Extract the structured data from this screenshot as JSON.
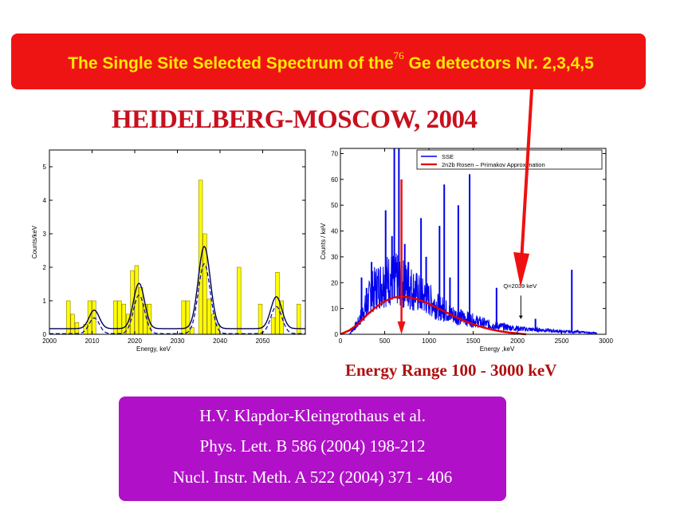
{
  "banner": {
    "text_before": "The Single Site Selected Spectrum of the",
    "superscript": "76",
    "text_after": " Ge detectors Nr. 2,3,4,5"
  },
  "subtitle": "HEIDELBERG-MOSCOW, 2004",
  "energy_range_label": "Energy Range 100 - 3000 keV",
  "references": {
    "authors": "H.V. Klapdor-Kleingrothaus et al.",
    "citation_1": "Phys. Lett. B 586 (2004) 198-212",
    "citation_2": "Nucl. Instr. Meth. A 522 (2004) 371 - 406"
  },
  "colors": {
    "banner_bg": "#ef1414",
    "banner_text": "#ffea00",
    "title_red": "#c8101e",
    "ref_box_bg": "#b010c8",
    "bar_fill": "#ffff00",
    "sse_line": "#0000ee",
    "fit_line": "#dd0000"
  },
  "chart_data": [
    {
      "type": "bar",
      "title": "",
      "xlabel": "Energy, keV",
      "ylabel": "Counts/keV",
      "xlim": [
        2000,
        2060
      ],
      "ylim": [
        0,
        5.5
      ],
      "xticks": [
        2000,
        2010,
        2020,
        2030,
        2040,
        2050
      ],
      "yticks": [
        0,
        1,
        2,
        3,
        4,
        5
      ],
      "bin_width": 1,
      "bins": [
        {
          "x": 2004,
          "y": 1.0
        },
        {
          "x": 2005,
          "y": 0.6
        },
        {
          "x": 2006,
          "y": 0.35
        },
        {
          "x": 2008,
          "y": 0.3
        },
        {
          "x": 2009,
          "y": 1.0
        },
        {
          "x": 2010,
          "y": 1.0
        },
        {
          "x": 2015,
          "y": 1.0
        },
        {
          "x": 2016,
          "y": 1.0
        },
        {
          "x": 2017,
          "y": 0.9
        },
        {
          "x": 2018,
          "y": 0.6
        },
        {
          "x": 2019,
          "y": 1.9
        },
        {
          "x": 2020,
          "y": 2.05
        },
        {
          "x": 2021,
          "y": 1.4
        },
        {
          "x": 2022,
          "y": 0.9
        },
        {
          "x": 2023,
          "y": 0.9
        },
        {
          "x": 2031,
          "y": 1.0
        },
        {
          "x": 2032,
          "y": 1.0
        },
        {
          "x": 2033,
          "y": 0.2
        },
        {
          "x": 2035,
          "y": 4.6
        },
        {
          "x": 2036,
          "y": 3.0
        },
        {
          "x": 2037,
          "y": 1.05
        },
        {
          "x": 2038,
          "y": 0.6
        },
        {
          "x": 2039,
          "y": 0.3
        },
        {
          "x": 2044,
          "y": 2.0
        },
        {
          "x": 2049,
          "y": 0.9
        },
        {
          "x": 2052,
          "y": 0.5
        },
        {
          "x": 2053,
          "y": 1.85
        },
        {
          "x": 2054,
          "y": 1.0
        },
        {
          "x": 2058,
          "y": 0.9
        }
      ],
      "fit_peaks": [
        {
          "center": 2010.5,
          "height": 0.55,
          "sigma": 1.2
        },
        {
          "center": 2021.0,
          "height": 1.35,
          "sigma": 1.3
        },
        {
          "center": 2036.3,
          "height": 2.45,
          "sigma": 1.4
        },
        {
          "center": 2053.2,
          "height": 0.95,
          "sigma": 1.3
        }
      ],
      "fit_baseline": 0.17
    },
    {
      "type": "line",
      "title": "",
      "xlabel": "Energy ,keV",
      "ylabel": "Counts / keV",
      "xlim": [
        0,
        3000
      ],
      "ylim": [
        0,
        72
      ],
      "xticks": [
        0,
        500,
        1000,
        1500,
        2000,
        2500,
        3000
      ],
      "yticks": [
        0,
        10,
        20,
        30,
        40,
        50,
        60,
        70
      ],
      "legend_position": "top-right",
      "series": [
        {
          "name": "SSE",
          "color": "#0000ee"
        },
        {
          "name": "2n2b Rosen – Primakov Approximation",
          "color": "#dd0000"
        }
      ],
      "sse_envelope": [
        [
          100,
          0
        ],
        [
          200,
          5
        ],
        [
          260,
          10
        ],
        [
          300,
          13
        ],
        [
          350,
          18
        ],
        [
          400,
          20
        ],
        [
          500,
          23
        ],
        [
          600,
          24
        ],
        [
          700,
          22
        ],
        [
          800,
          20
        ],
        [
          900,
          17
        ],
        [
          1000,
          15
        ],
        [
          1100,
          12
        ],
        [
          1200,
          10
        ],
        [
          1300,
          8
        ],
        [
          1400,
          7
        ],
        [
          1500,
          6
        ],
        [
          1600,
          5
        ],
        [
          1700,
          4
        ],
        [
          1800,
          3.5
        ],
        [
          1900,
          3
        ],
        [
          2000,
          2.5
        ],
        [
          2100,
          2.2
        ],
        [
          2300,
          1.8
        ],
        [
          2500,
          1.2
        ],
        [
          2700,
          1.0
        ],
        [
          2900,
          0.5
        ]
      ],
      "sse_peaks": [
        {
          "x": 239,
          "y": 22
        },
        {
          "x": 295,
          "y": 18
        },
        {
          "x": 352,
          "y": 28
        },
        {
          "x": 511,
          "y": 48
        },
        {
          "x": 583,
          "y": 38
        },
        {
          "x": 609,
          "y": 72
        },
        {
          "x": 661,
          "y": 72
        },
        {
          "x": 727,
          "y": 35
        },
        {
          "x": 768,
          "y": 28
        },
        {
          "x": 911,
          "y": 45
        },
        {
          "x": 969,
          "y": 30
        },
        {
          "x": 1120,
          "y": 42
        },
        {
          "x": 1173,
          "y": 58
        },
        {
          "x": 1238,
          "y": 22
        },
        {
          "x": 1332,
          "y": 50
        },
        {
          "x": 1460,
          "y": 62
        },
        {
          "x": 1764,
          "y": 18
        },
        {
          "x": 2204,
          "y": 6
        },
        {
          "x": 2615,
          "y": 25
        }
      ],
      "fit_curve": [
        [
          0,
          0
        ],
        [
          100,
          1.5
        ],
        [
          200,
          4
        ],
        [
          300,
          7.5
        ],
        [
          400,
          10.5
        ],
        [
          500,
          12.8
        ],
        [
          600,
          14.2
        ],
        [
          700,
          14.6
        ],
        [
          800,
          14.2
        ],
        [
          900,
          13.2
        ],
        [
          1000,
          11.8
        ],
        [
          1100,
          10.1
        ],
        [
          1200,
          8.4
        ],
        [
          1300,
          6.7
        ],
        [
          1400,
          5.2
        ],
        [
          1500,
          3.9
        ],
        [
          1600,
          2.8
        ],
        [
          1700,
          1.9
        ],
        [
          1800,
          1.2
        ],
        [
          1900,
          0.7
        ],
        [
          2000,
          0.35
        ],
        [
          2039,
          0.2
        ],
        [
          2100,
          0
        ]
      ],
      "annotation": {
        "label": "Q=2039 keV",
        "x": 2039,
        "y": 6
      }
    }
  ]
}
